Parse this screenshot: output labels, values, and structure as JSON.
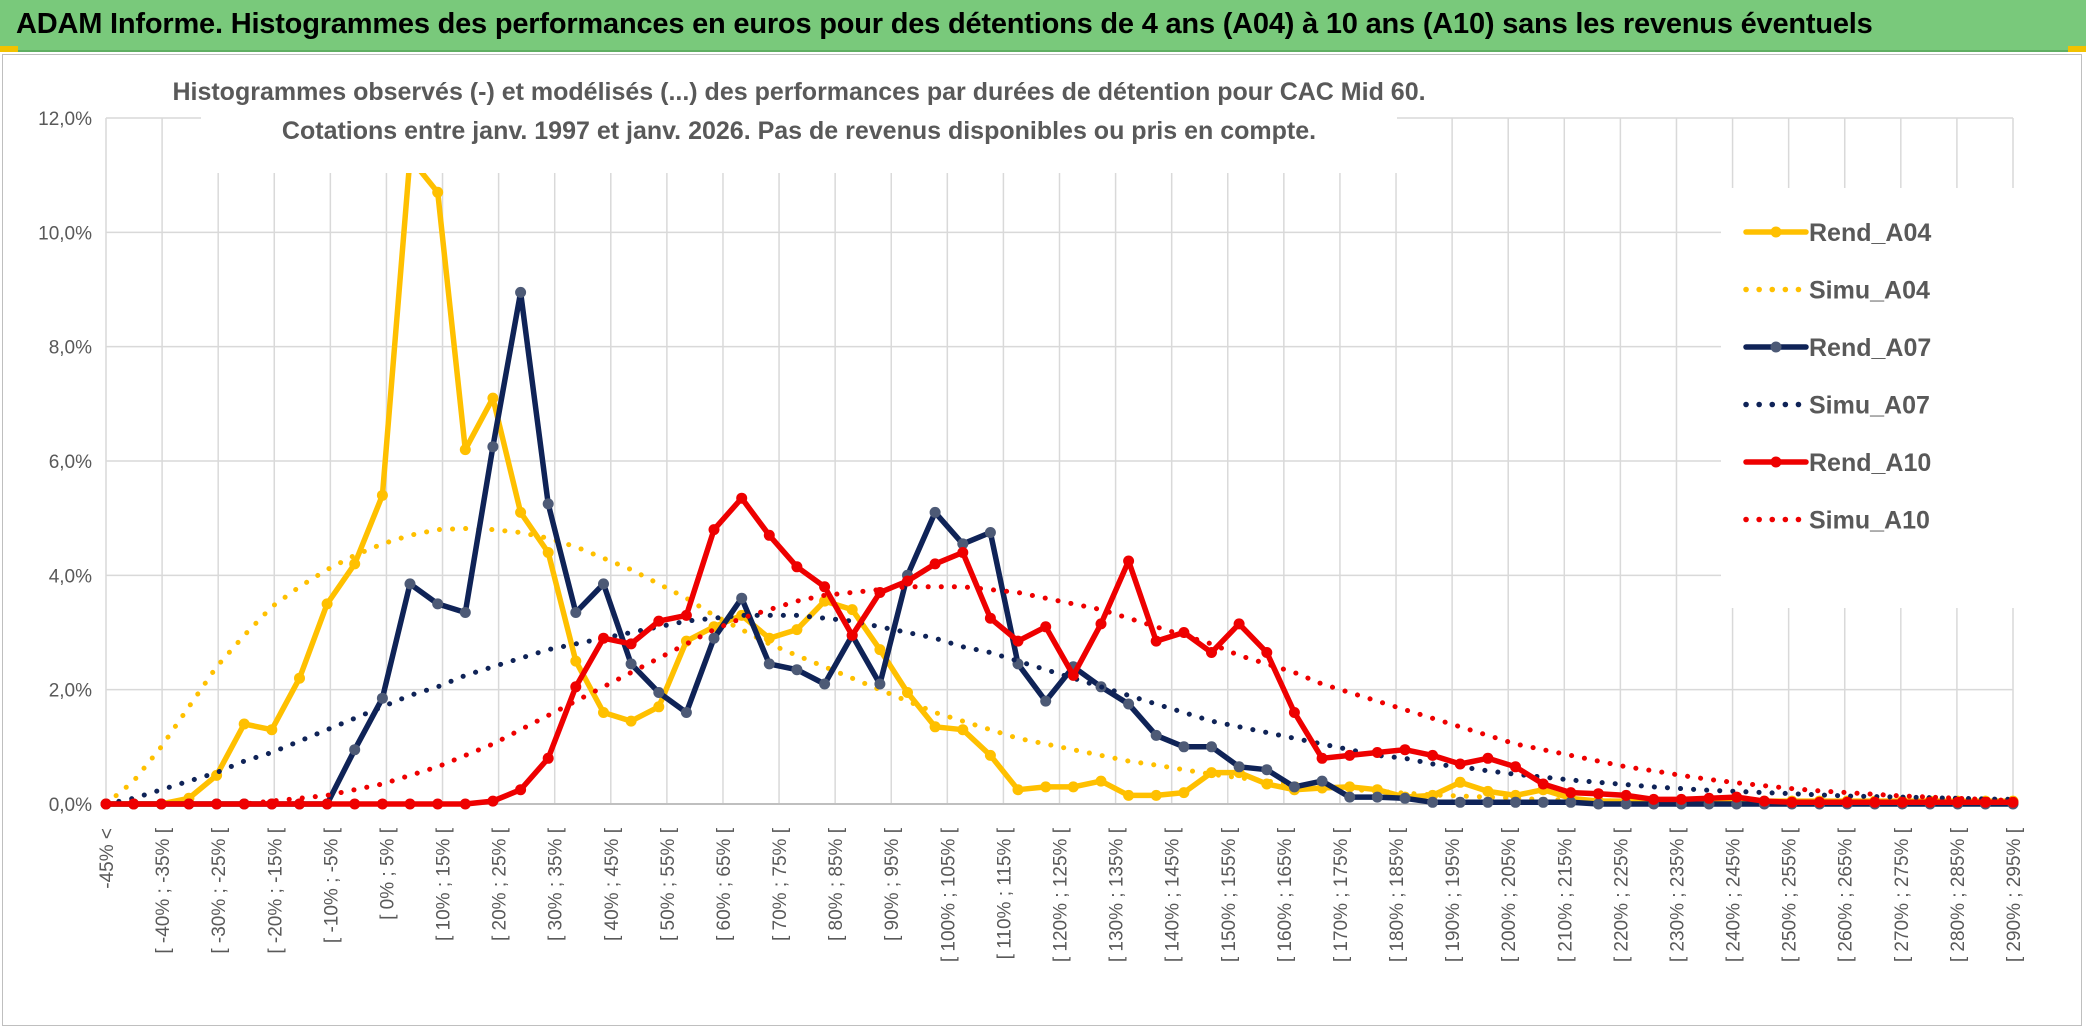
{
  "banner": {
    "title": "ADAM Informe. Histogrammes des performances en euros pour des détentions de 4 ans (A04) à 10 ans (A10) sans les revenus éventuels"
  },
  "colors": {
    "banner": "#79c97b",
    "A04": "#ffc000",
    "A07": "#0f2357",
    "A10": "#ee0000",
    "grid": "#d9d9d9",
    "text": "#595959"
  },
  "chart_data": {
    "type": "line",
    "title": "Histogrammes observés (-) et modélisés (...) des performances par durées de détention pour CAC Mid 60.",
    "subtitle": "Cotations entre janv. 1997 et janv. 2026. Pas de revenus disponibles ou pris en compte.",
    "ylim": [
      0,
      12
    ],
    "y_ticks": [
      "0,0%",
      "2,0%",
      "4,0%",
      "6,0%",
      "8,0%",
      "10,0%",
      "12,0%"
    ],
    "grid": true,
    "legend_position": "right",
    "x_tick_labels": [
      "-45% <",
      "[ -40% ; -35% [",
      "[ -30% ; -25% [",
      "[ -20% ; -15% [",
      "[ -10% ; -5% [",
      "[ 0% ; 5% [",
      "[ 10% ; 15% [",
      "[ 20% ; 25% [",
      "[ 30% ; 35% [",
      "[ 40% ; 45% [",
      "[ 50% ; 55% [",
      "[ 60% ; 65% [",
      "[ 70% ; 75% [",
      "[ 80% ; 85% [",
      "[ 90% ; 95% [",
      "[ 100% ; 105% [",
      "[ 110% ; 115% [",
      "[ 120% ; 125% [",
      "[ 130% ; 135% [",
      "[ 140% ; 145% [",
      "[ 150% ; 155% [",
      "[ 160% ; 165% [",
      "[ 170% ; 175% [",
      "[ 180% ; 185% [",
      "[ 190% ; 195% [",
      "[ 200% ; 205% [",
      "[ 210% ; 215% [",
      "[ 220% ; 225% [",
      "[ 230% ; 235% [",
      "[ 240% ; 245% [",
      "[ 250% ; 255% [",
      "[ 260% ; 265% [",
      "[ 270% ; 275% [",
      "[ 280% ; 285% [",
      "[ 290% ; 295% ["
    ],
    "series": [
      {
        "name": "Rend_A04",
        "style": "solid",
        "color": "#ffc000",
        "values": [
          0.0,
          0.0,
          0.0,
          0.1,
          0.5,
          1.4,
          1.3,
          2.2,
          3.5,
          4.2,
          5.4,
          11.3,
          10.7,
          6.2,
          7.1,
          5.1,
          4.4,
          2.5,
          1.6,
          1.45,
          1.7,
          2.85,
          3.1,
          3.3,
          2.9,
          3.05,
          3.55,
          3.4,
          2.7,
          1.95,
          1.35,
          1.3,
          0.85,
          0.25,
          0.3,
          0.3,
          0.4,
          0.15,
          0.15,
          0.2,
          0.55,
          0.55,
          0.35,
          0.25,
          0.28,
          0.3,
          0.25,
          0.12,
          0.15,
          0.38,
          0.22,
          0.15,
          0.25,
          0.1,
          0.05,
          0.05,
          0.05,
          0.05,
          0.05,
          0.05,
          0.05,
          0.05,
          0.05,
          0.05,
          0.05,
          0.05,
          0.05,
          0.05,
          0.05,
          0.05
        ]
      },
      {
        "name": "Simu_A04",
        "style": "dotted",
        "color": "#ffc000",
        "values": [
          0.0,
          0.4,
          1.0,
          1.7,
          2.4,
          2.95,
          3.45,
          3.8,
          4.1,
          4.35,
          4.55,
          4.7,
          4.8,
          4.82,
          4.8,
          4.75,
          4.65,
          4.5,
          4.3,
          4.1,
          3.85,
          3.6,
          3.3,
          3.05,
          2.8,
          2.6,
          2.4,
          2.2,
          2.0,
          1.8,
          1.6,
          1.45,
          1.3,
          1.15,
          1.05,
          0.95,
          0.85,
          0.75,
          0.68,
          0.6,
          0.52,
          0.46,
          0.4,
          0.35,
          0.3,
          0.26,
          0.22,
          0.19,
          0.16,
          0.14,
          0.12,
          0.1,
          0.08,
          0.07,
          0.06,
          0.05,
          0.04,
          0.03,
          0.03,
          0.02,
          0.02,
          0.01,
          0.01,
          0.01,
          0.01,
          0.0,
          0.0,
          0.0,
          0.0,
          0.0
        ]
      },
      {
        "name": "Rend_A07",
        "style": "solid",
        "color": "#0f2357",
        "values": [
          0.0,
          0.0,
          0.0,
          0.0,
          0.0,
          0.0,
          0.0,
          0.0,
          0.0,
          0.95,
          1.85,
          3.85,
          3.5,
          3.35,
          6.25,
          8.95,
          5.25,
          3.35,
          3.85,
          2.45,
          1.95,
          1.6,
          2.9,
          3.6,
          2.45,
          2.35,
          2.1,
          2.95,
          2.1,
          4.0,
          5.1,
          4.55,
          4.75,
          2.45,
          1.8,
          2.4,
          2.05,
          1.75,
          1.2,
          1.0,
          1.0,
          0.65,
          0.6,
          0.3,
          0.4,
          0.12,
          0.12,
          0.1,
          0.03,
          0.03,
          0.03,
          0.03,
          0.03,
          0.03,
          0.0,
          0.0,
          0.0,
          0.0,
          0.0,
          0.0,
          0.0,
          0.0,
          0.0,
          0.0,
          0.0,
          0.0,
          0.0,
          0.0,
          0.0,
          0.0
        ]
      },
      {
        "name": "Simu_A07",
        "style": "dotted",
        "color": "#0f2357",
        "values": [
          0.0,
          0.1,
          0.25,
          0.4,
          0.55,
          0.75,
          0.9,
          1.1,
          1.3,
          1.5,
          1.7,
          1.9,
          2.05,
          2.25,
          2.4,
          2.55,
          2.7,
          2.8,
          2.9,
          3.0,
          3.1,
          3.2,
          3.25,
          3.3,
          3.3,
          3.3,
          3.25,
          3.2,
          3.1,
          3.0,
          2.9,
          2.75,
          2.65,
          2.5,
          2.35,
          2.2,
          2.05,
          1.9,
          1.75,
          1.6,
          1.45,
          1.35,
          1.25,
          1.15,
          1.05,
          0.95,
          0.85,
          0.8,
          0.7,
          0.65,
          0.58,
          0.52,
          0.47,
          0.42,
          0.38,
          0.34,
          0.3,
          0.27,
          0.24,
          0.22,
          0.2,
          0.18,
          0.16,
          0.14,
          0.13,
          0.12,
          0.11,
          0.1,
          0.09,
          0.08
        ]
      },
      {
        "name": "Rend_A10",
        "style": "solid",
        "color": "#ee0000",
        "values": [
          0.0,
          0.0,
          0.0,
          0.0,
          0.0,
          0.0,
          0.0,
          0.0,
          0.0,
          0.0,
          0.0,
          0.0,
          0.0,
          0.0,
          0.05,
          0.25,
          0.8,
          2.05,
          2.9,
          2.8,
          3.2,
          3.3,
          4.8,
          5.35,
          4.7,
          4.15,
          3.8,
          2.95,
          3.7,
          3.9,
          4.2,
          4.4,
          3.25,
          2.85,
          3.1,
          2.25,
          3.15,
          4.25,
          2.85,
          3.0,
          2.65,
          3.15,
          2.65,
          1.6,
          0.8,
          0.85,
          0.9,
          0.95,
          0.85,
          0.7,
          0.8,
          0.65,
          0.35,
          0.2,
          0.18,
          0.15,
          0.08,
          0.08,
          0.1,
          0.12,
          0.05,
          0.03,
          0.03,
          0.03,
          0.03,
          0.03,
          0.03,
          0.03,
          0.03,
          0.03
        ]
      },
      {
        "name": "Simu_A10",
        "style": "dotted",
        "color": "#ee0000",
        "values": [
          0.0,
          0.0,
          0.0,
          0.0,
          0.0,
          0.0,
          0.05,
          0.1,
          0.15,
          0.25,
          0.35,
          0.5,
          0.65,
          0.85,
          1.05,
          1.3,
          1.55,
          1.8,
          2.05,
          2.3,
          2.55,
          2.8,
          3.05,
          3.25,
          3.4,
          3.55,
          3.65,
          3.7,
          3.75,
          3.8,
          3.8,
          3.8,
          3.75,
          3.7,
          3.6,
          3.5,
          3.4,
          3.25,
          3.1,
          2.95,
          2.8,
          2.6,
          2.45,
          2.3,
          2.1,
          1.95,
          1.8,
          1.65,
          1.5,
          1.35,
          1.2,
          1.05,
          0.95,
          0.85,
          0.75,
          0.65,
          0.58,
          0.5,
          0.43,
          0.37,
          0.32,
          0.27,
          0.23,
          0.2,
          0.17,
          0.14,
          0.12,
          0.1,
          0.08,
          0.06
        ]
      }
    ]
  }
}
